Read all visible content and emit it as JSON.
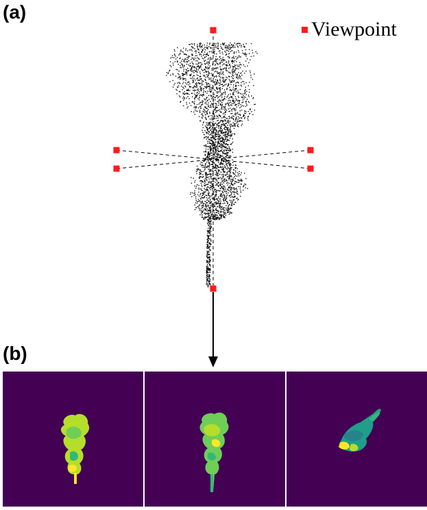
{
  "panel_a_label": "(a)",
  "panel_b_label": "(b)",
  "legend": {
    "label": "Viewpoint",
    "marker_color": "#ff1a1a"
  },
  "colors": {
    "viewpoint": "#ff1a1a",
    "point_cloud": "#111111",
    "render_background": "#440154",
    "render_palette": [
      "#b5de2b",
      "#6ece58",
      "#35b779",
      "#1f9e89",
      "#26828e",
      "#fde725"
    ]
  },
  "viewpoints": {
    "count": 6,
    "views": [
      "top",
      "side",
      "side",
      "side",
      "side",
      "bottom"
    ]
  },
  "renders": [
    {
      "name": "view-1",
      "colormap": "viridis"
    },
    {
      "name": "view-2",
      "colormap": "viridis"
    },
    {
      "name": "view-3",
      "colormap": "viridis"
    }
  ]
}
